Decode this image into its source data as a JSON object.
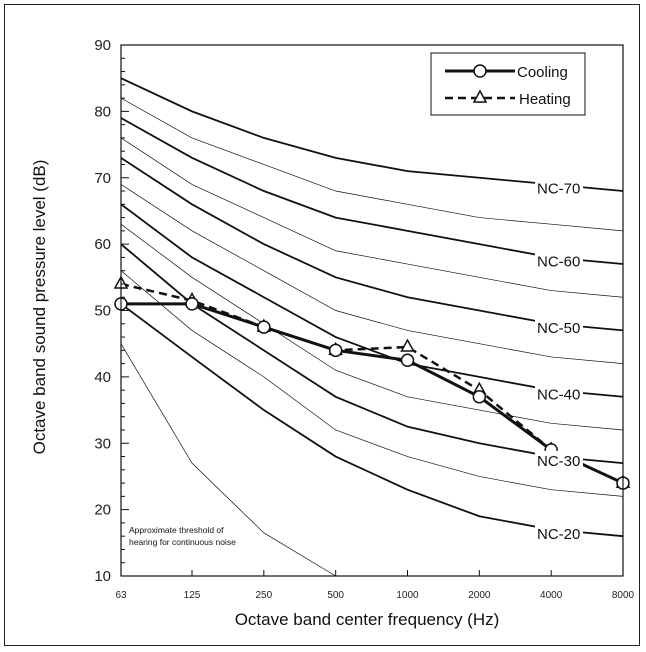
{
  "chart_data": {
    "type": "line",
    "title": "",
    "xlabel": "Octave band center frequency (Hz)",
    "ylabel": "Octave band sound pressure level (dB)",
    "x_scale": "log",
    "x": [
      "63",
      "125",
      "250",
      "500",
      "1000",
      "2000",
      "4000",
      "8000"
    ],
    "x_values": [
      63,
      125,
      250,
      500,
      1000,
      2000,
      4000,
      8000
    ],
    "ylim": [
      10,
      90
    ],
    "yticks": [
      "10",
      "20",
      "30",
      "40",
      "50",
      "60",
      "70",
      "80",
      "90"
    ],
    "ytick_values": [
      10,
      20,
      30,
      40,
      50,
      60,
      70,
      80,
      90
    ],
    "grid": false,
    "legend_position": "top-right",
    "series": [
      {
        "name": "Cooling",
        "style": "solid",
        "marker": "circle",
        "values": [
          51,
          51,
          47.5,
          44,
          42.5,
          37,
          29,
          24
        ]
      },
      {
        "name": "Heating",
        "style": "dashed",
        "marker": "triangle",
        "values": [
          54,
          51.5,
          47.5,
          44,
          44.5,
          38,
          29,
          24
        ]
      }
    ],
    "nc_curves": [
      {
        "label": "NC-70",
        "bold": true,
        "values": [
          85,
          80,
          76,
          73,
          71,
          70,
          69,
          68
        ]
      },
      {
        "label": "",
        "bold": false,
        "values": [
          82,
          76,
          72,
          68,
          66,
          64,
          63,
          62
        ]
      },
      {
        "label": "NC-60",
        "bold": true,
        "values": [
          79,
          73,
          68,
          64,
          62,
          60,
          58,
          57
        ]
      },
      {
        "label": "",
        "bold": false,
        "values": [
          76,
          69,
          64,
          59,
          57,
          55,
          53,
          52
        ]
      },
      {
        "label": "NC-50",
        "bold": true,
        "values": [
          73,
          66,
          60,
          55,
          52,
          50,
          48,
          47
        ]
      },
      {
        "label": "",
        "bold": false,
        "values": [
          69,
          62,
          56,
          50,
          47,
          45,
          43,
          42
        ]
      },
      {
        "label": "NC-40",
        "bold": true,
        "values": [
          66,
          58,
          52,
          46,
          42,
          40,
          38,
          37
        ]
      },
      {
        "label": "",
        "bold": false,
        "values": [
          63,
          55,
          48,
          41,
          37,
          35,
          33,
          32
        ]
      },
      {
        "label": "NC-30",
        "bold": true,
        "values": [
          60,
          51,
          44,
          37,
          32.5,
          30,
          28,
          27
        ]
      },
      {
        "label": "",
        "bold": false,
        "values": [
          56,
          47,
          40,
          32,
          28,
          25,
          23,
          22
        ]
      },
      {
        "label": "NC-20",
        "bold": true,
        "values": [
          51,
          43,
          35,
          28,
          23,
          19,
          17,
          16
        ]
      }
    ],
    "threshold_curve": {
      "values": [
        45,
        27,
        16.5,
        10
      ]
    },
    "annotations": [
      "Approximate threshold of",
      "hearing for continuous noise"
    ],
    "colors": {
      "line": "#111111",
      "marker_fill": "#ffffff"
    }
  }
}
